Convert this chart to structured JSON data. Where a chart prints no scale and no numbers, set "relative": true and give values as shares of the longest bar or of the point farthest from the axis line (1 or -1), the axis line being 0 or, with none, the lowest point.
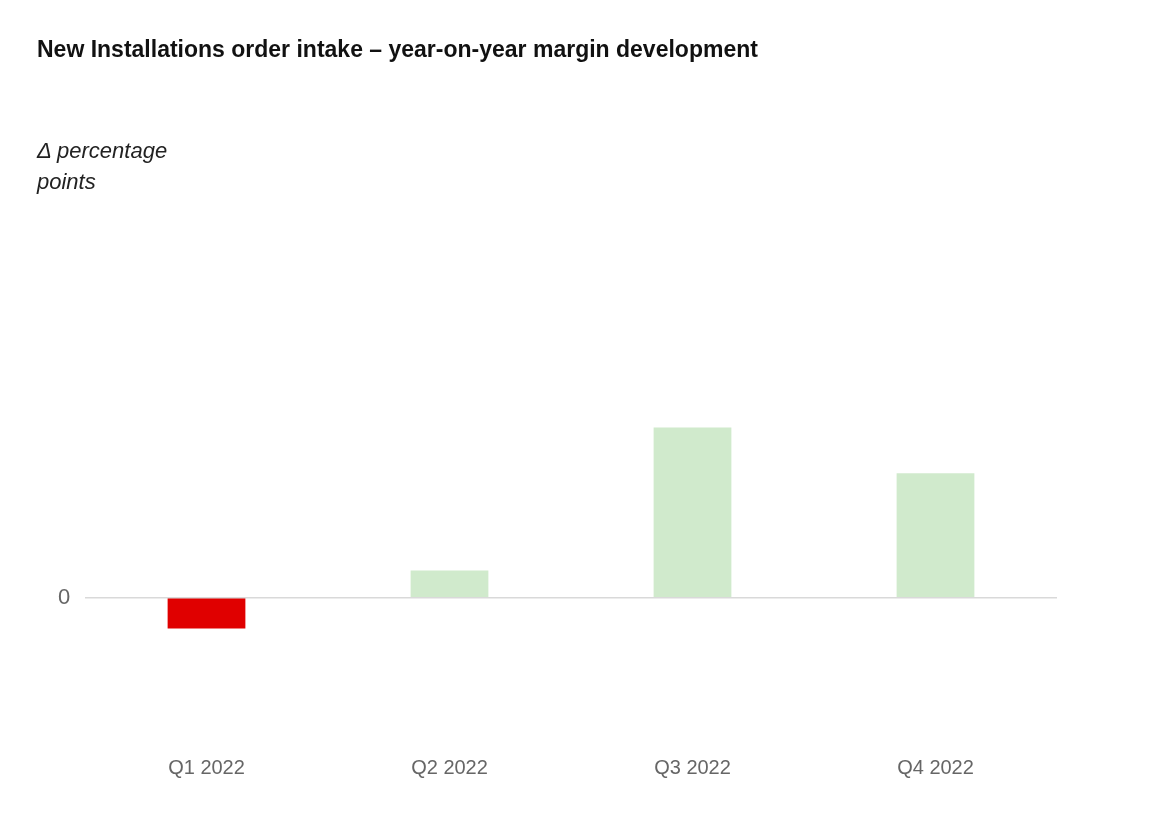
{
  "chart_data": {
    "type": "bar",
    "title": "New Installations order intake – year-on-year margin development",
    "annotations": [
      "Δ percentage points"
    ],
    "categories": [
      "Q1 2022",
      "Q2 2022",
      "Q3 2022",
      "Q4 2022"
    ],
    "values": [
      -0.18,
      0.16,
      1,
      0.73
    ],
    "colors": [
      "#e00000",
      "#d0eacc",
      "#d0eacc",
      "#d0eacc"
    ],
    "relative": true,
    "grid": false,
    "legend": false,
    "ref_lines": [
      {
        "axis": "y",
        "value": 0,
        "label": "0",
        "color": "#d9d9d9"
      }
    ]
  }
}
